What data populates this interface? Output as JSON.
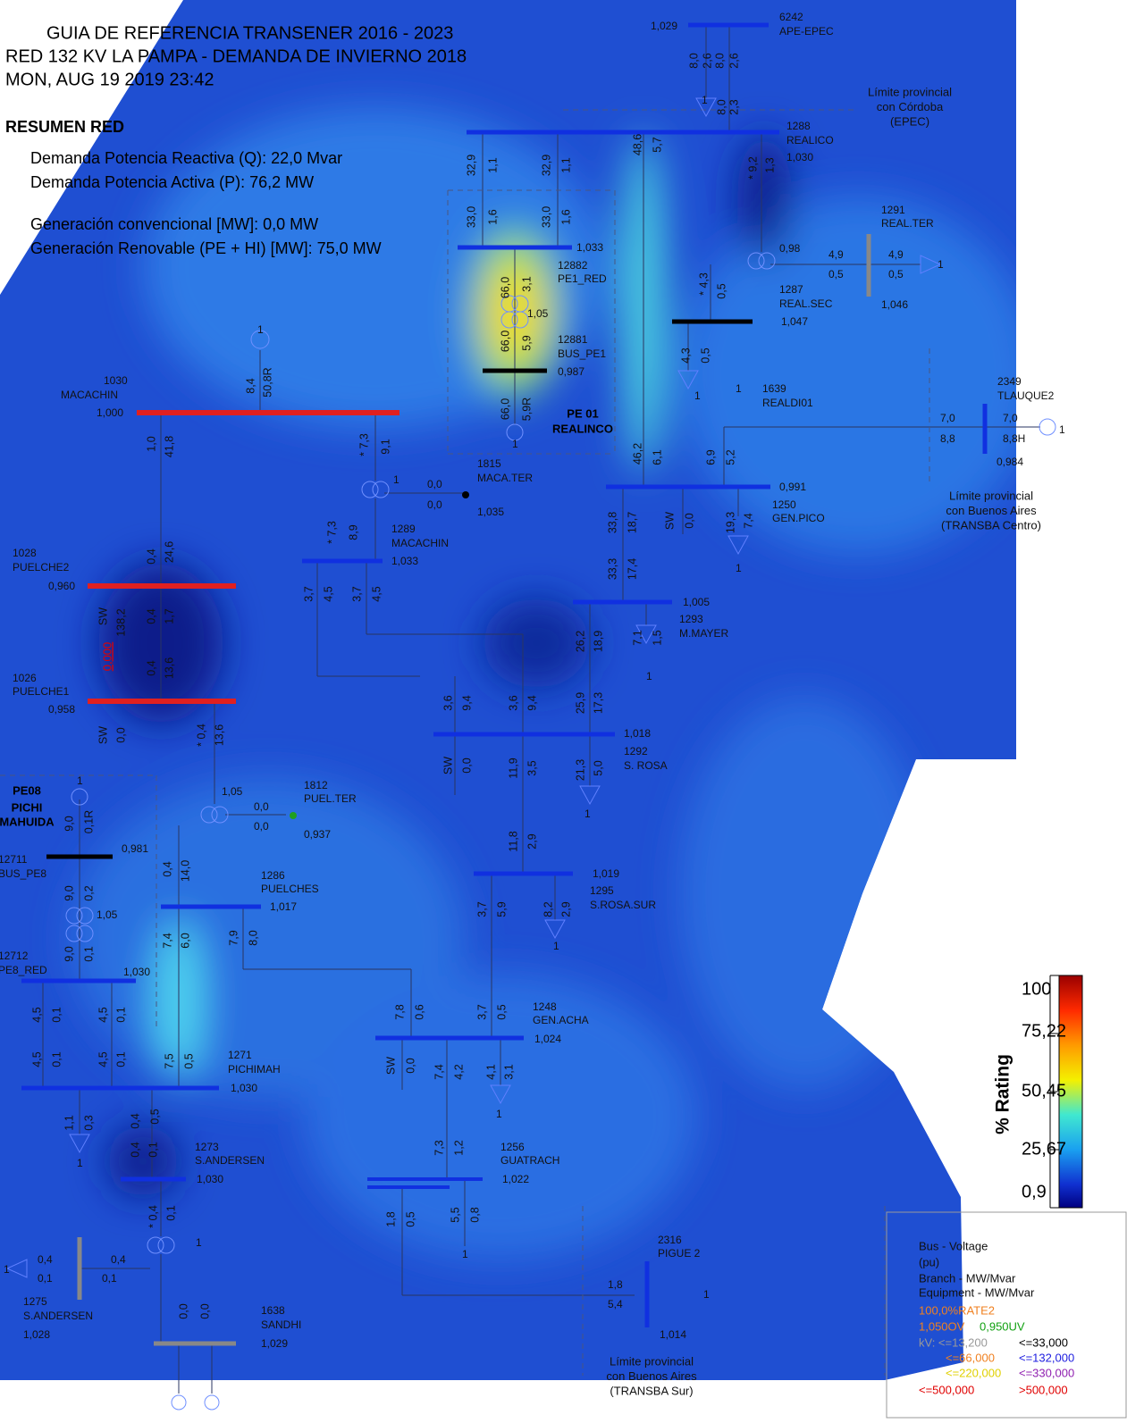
{
  "header": {
    "lines": [
      "GUIA DE REFERENCIA TRANSENER 2016 - 2023",
      "RED 132  KV LA PAMPA - DEMANDA DE INVIERNO 2018",
      "MON, AUG 19 2019  23:42"
    ]
  },
  "summary": {
    "title": "RESUMEN RED",
    "lines": [
      "Demanda Potencia Reactiva (Q): 22,0 Mvar",
      "Demanda Potencia Activa (P): 76,2 MW",
      "Generación convencional [MW]: 0,0 MW",
      "Generación Renovable (PE + HI) [MW]: 75,0 MW"
    ]
  },
  "bus_labels": [
    "1,029",
    "6242",
    "APE-EPEC",
    "1288",
    "REALICO",
    "1,030",
    "1,033",
    "12882",
    "PE1_RED",
    "1,05",
    "12881",
    "BUS_PE1",
    "0,987",
    "1291",
    "REAL.TER",
    "0,98",
    "1287",
    "REAL.SEC",
    "1,046",
    "1,047",
    "1639",
    "REALDI01",
    "2349",
    "TLAUQUE2",
    "0,984",
    "1030",
    "MACACHIN",
    "1,000",
    "1815",
    "MACA.TER",
    "1,035",
    "1289",
    "MACACHIN",
    "1,033",
    "0,991",
    "1250",
    "GEN.PICO",
    "1028",
    "PUELCHE2",
    "0,960",
    "1,005",
    "1293",
    "M.MAYER",
    "1026",
    "PUELCHE1",
    "0,958",
    "1,018",
    "1292",
    "S. ROSA",
    "1812",
    "PUEL.TER",
    "1,05",
    "0,937",
    "12711",
    "BUS_PE8",
    "0,981",
    "1286",
    "PUELCHES",
    "1,017",
    "1,019",
    "1295",
    "S.ROSA.SUR",
    "1,05",
    "12712",
    "PE8_RED",
    "1,030",
    "1248",
    "GEN.ACHA",
    "1,024",
    "1271",
    "PICHIMAH",
    "1,030",
    "1273",
    "S.ANDERSEN",
    "1,030",
    "1256",
    "GUATRACH",
    "1,022",
    "2316",
    "PIGUE 2",
    "1275",
    "S.ANDERSEN",
    "1,028",
    "1638",
    "SANDHI",
    "1,029",
    "1,014",
    "4,9",
    "0,5",
    "4,9",
    "0,5",
    "0,0",
    "0,0",
    "0,0",
    "0,0",
    "7,0",
    "8,8",
    "7,0",
    "8,8H",
    "0,4",
    "0,1",
    "0,4",
    "0,1",
    "1,8",
    "5,4",
    "1",
    "1",
    "1",
    "1",
    "1",
    "1",
    "1",
    "1",
    "1",
    "1",
    "1",
    "1",
    "1",
    "1",
    "1",
    "1",
    "1",
    "1",
    "1"
  ],
  "flow_labels": [
    "8,0",
    "2,6",
    "8,0",
    "2,6",
    "8,0",
    "2,3",
    "32,9",
    "1,1",
    "32,9",
    "1,1",
    "48,6",
    "5,7",
    "* 9,2",
    "1,3",
    "33,0",
    "1,6",
    "33,0",
    "1,6",
    "66,0",
    "3,1",
    "66,0",
    "5,9",
    "66,0",
    "5,9R",
    "* 4,3",
    "0,5",
    "4,3",
    "0,5",
    "8,4",
    "50,8R",
    "1,0",
    "41,8",
    "* 7,3",
    "9,1",
    "46,2",
    "6,1",
    "6,9",
    "5,2",
    "* 7,3",
    "8,9",
    "0,4",
    "24,6",
    "33,8",
    "18,7",
    "SW",
    "0,0",
    "19,3",
    "7,4",
    "33,3",
    "17,4",
    "3,7",
    "4,5",
    "3,7",
    "4,5",
    "SW",
    "138,2",
    "0,4",
    "1,7",
    "26,2",
    "18,9",
    "7,1",
    "1,5",
    "0,4",
    "13,6",
    "3,6",
    "9,4",
    "3,6",
    "9,4",
    "25,9",
    "17,3",
    "SW",
    "0,0",
    "* 0,4",
    "13,6",
    "SW",
    "0,0",
    "11,9",
    "3,5",
    "21,3",
    "5,0",
    "9,0",
    "0,1R",
    "11,8",
    "2,9",
    "0,4",
    "14,0",
    "9,0",
    "0,2",
    "3,7",
    "5,9",
    "8,2",
    "2,9",
    "7,4",
    "6,0",
    "7,9",
    "8,0",
    "9,0",
    "0,1",
    "7,8",
    "0,6",
    "3,7",
    "0,5",
    "4,5",
    "0,1",
    "4,5",
    "0,1",
    "4,5",
    "0,1",
    "4,5",
    "0,1",
    "7,5",
    "0,5",
    "SW",
    "0,0",
    "7,4",
    "4,2",
    "4,1",
    "3,1",
    "1,1",
    "0,3",
    "0,4",
    "0,5",
    "0,4",
    "0,1",
    "7,3",
    "1,2",
    "1,8",
    "0,5",
    "5,5",
    "0,8",
    "* 0,4",
    "0,1",
    "0,0",
    "0,0"
  ],
  "red_label": "0,000",
  "bold_labels": [
    "PE 01",
    "REALINCO",
    "PE08",
    "PICHI",
    "MAHUIDA"
  ],
  "boundaries": [
    [
      "Límite provincial",
      "con Córdoba",
      "(EPEC)"
    ],
    [
      "Límite provincial",
      "con Buenos Aires",
      "(TRANSBA Centro)"
    ],
    [
      "Límite provincial",
      "con Buenos Aires",
      "(TRANSBA Sur)"
    ]
  ],
  "colorbar": {
    "title": "% Rating",
    "ticks": [
      "100",
      "75,22",
      "50,45",
      "25,67",
      "0,9"
    ]
  },
  "legend": {
    "lines": [
      "Bus - Voltage",
      "(pu)",
      "Branch - MW/Mvar",
      "Equipment - MW/Mvar",
      "100,0%RATE2",
      "1,050OV",
      "0,950UV",
      "kV: <=13,200",
      "<=33,000",
      "<=66,000",
      "<=132,000",
      "<=220,000",
      "<=330,000",
      "<=500,000",
      ">500,000"
    ]
  }
}
